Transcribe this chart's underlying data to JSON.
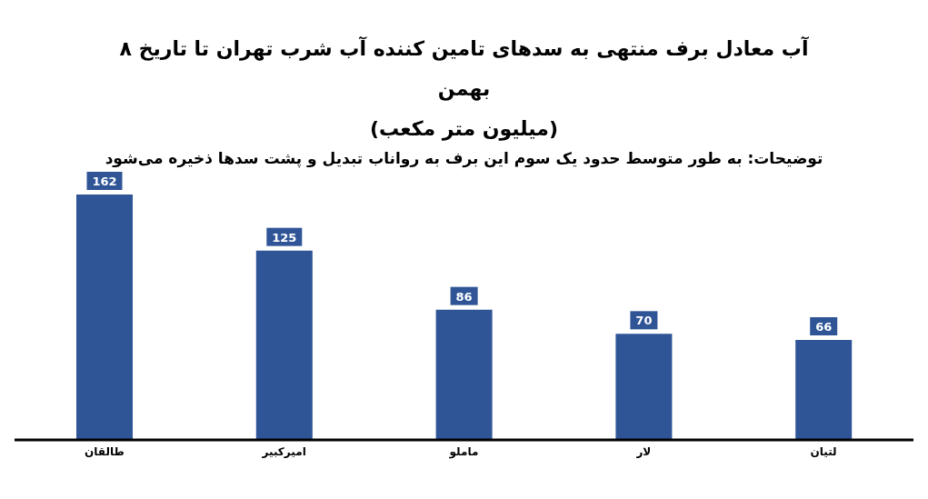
{
  "chart_data": {
    "type": "bar",
    "title": "آب معادل برف منتهی به سدهای تامین کننده آب شرب تهران تا تاریخ ۸ بهمن\n(میلیون متر مکعب)",
    "subtitle": "توضیحات: به طور متوسط حدود یک سوم این برف به رواناب تبدیل و پشت سدها ذخیره می‌شود",
    "categories": [
      "طالقان",
      "امیرکبیر",
      "ماملو",
      "لار",
      "لتیان"
    ],
    "values": [
      162,
      125,
      86,
      70,
      66
    ],
    "color": "#2f5597",
    "data_labels": true
  }
}
